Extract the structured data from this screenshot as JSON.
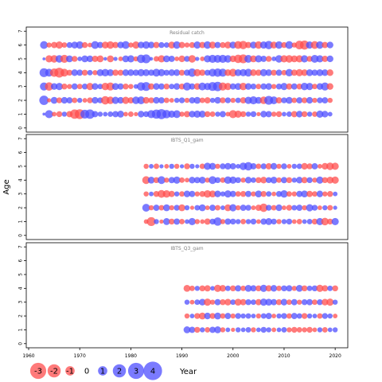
{
  "chart_data": {
    "type": "scatter",
    "subtype": "bubble-residual-plot",
    "xlabel": "Year",
    "ylabel": "Age",
    "xlim": [
      1960,
      2022
    ],
    "x_ticks": [
      1960,
      1970,
      1980,
      1990,
      2000,
      2010,
      2020
    ],
    "y_ticks": [
      0,
      1,
      2,
      3,
      4,
      5,
      6,
      7
    ],
    "colors": {
      "negative": "#ff4d4d",
      "positive": "#4d4dff",
      "frame": "#000000",
      "panel_title": "#7f7f7f"
    },
    "legend": {
      "position": "bottom-left",
      "entries": [
        {
          "label": "-3",
          "value": -3
        },
        {
          "label": "-2",
          "value": -2
        },
        {
          "label": "-1",
          "value": -1
        },
        {
          "label": "0",
          "value": 0
        },
        {
          "label": "1",
          "value": 1
        },
        {
          "label": "2",
          "value": 2
        },
        {
          "label": "3",
          "value": 3
        },
        {
          "label": "4",
          "value": 4
        }
      ]
    },
    "panels": [
      {
        "title": "Residual catch",
        "ylim": [
          -0.3,
          7.3
        ],
        "years": [
          1963,
          2019
        ],
        "ages": [
          1,
          2,
          3,
          4,
          5,
          6
        ],
        "residuals": {
          "1": [
            0.2,
            1.5,
            -0.5,
            -0.8,
            0.6,
            -0.9,
            -2.0,
            -2.2,
            1.8,
            2.0,
            0.9,
            0.6,
            0.5,
            0.7,
            0.9,
            1.1,
            -0.5,
            -0.7,
            -0.4,
            1.0,
            0.8,
            1.5,
            1.9,
            2.3,
            1.6,
            1.2,
            1.4,
            -0.6,
            -0.9,
            1.0,
            1.2,
            1.1,
            -0.8,
            -0.7,
            0.6,
            0.9,
            -0.5,
            -1.5,
            -1.2,
            -0.8,
            0.6,
            0.8,
            -0.4,
            1.0,
            0.9,
            -0.6,
            -0.8,
            0.5,
            0.7,
            -0.9,
            1.0,
            -0.8,
            0.6,
            -0.7,
            1.2,
            1.0,
            0.5
          ],
          "2": [
            2.0,
            -0.4,
            1.1,
            -0.8,
            1.0,
            0.9,
            -0.7,
            0.6,
            -0.5,
            -0.8,
            1.0,
            0.8,
            -1.6,
            -1.3,
            1.2,
            1.0,
            -1.2,
            -0.9,
            1.3,
            1.4,
            -1.0,
            -0.8,
            1.0,
            0.9,
            -0.7,
            -0.5,
            0.6,
            0.8,
            -0.6,
            0.9,
            1.1,
            -0.7,
            -0.9,
            0.6,
            1.0,
            -0.8,
            0.8,
            -0.6,
            0.7,
            -0.9,
            1.2,
            1.5,
            1.1,
            -1.3,
            1.8,
            1.4,
            -0.9,
            0.8,
            1.1,
            -0.7,
            0.9,
            -0.8,
            1.0,
            -0.6,
            0.8,
            0.9,
            -0.6
          ],
          "3": [
            1.5,
            -1.6,
            1.0,
            1.2,
            -0.8,
            -0.6,
            0.9,
            -0.7,
            0.8,
            -1.2,
            1.0,
            0.7,
            -1.3,
            -1.5,
            1.1,
            0.9,
            -0.8,
            -0.6,
            0.5,
            1.6,
            1.8,
            -0.9,
            1.0,
            0.9,
            -0.8,
            0.7,
            1.0,
            -0.8,
            1.5,
            0.9,
            -1.0,
            1.4,
            1.2,
            1.8,
            2.0,
            -1.5,
            -1.2,
            0.9,
            1.1,
            -1.3,
            1.0,
            0.8,
            -0.7,
            0.9,
            1.0,
            -0.6,
            0.8,
            1.2,
            -0.9,
            0.9,
            -0.8,
            1.3,
            1.2,
            -0.7,
            1.0,
            1.5,
            -1.0
          ],
          "4": [
            1.8,
            1.4,
            -1.6,
            -2.2,
            -1.4,
            -0.8,
            1.0,
            0.9,
            -0.8,
            0.7,
            -0.6,
            1.1,
            1.3,
            1.1,
            -0.9,
            -0.8,
            1.0,
            1.0,
            0.9,
            1.2,
            1.1,
            0.9,
            1.4,
            1.2,
            0.8,
            1.0,
            1.0,
            -0.8,
            0.9,
            1.6,
            -1.2,
            -0.9,
            0.8,
            1.4,
            1.6,
            1.5,
            -1.0,
            -1.4,
            1.1,
            1.2,
            1.4,
            -1.0,
            -0.9,
            1.2,
            1.0,
            -0.8,
            0.9,
            -0.7,
            1.3,
            -0.9,
            -1.2,
            -1.0,
            1.1,
            0.9,
            1.1,
            1.0,
            -1.0
          ],
          "5": [
            0.2,
            -1.2,
            -1.3,
            1.3,
            -1.5,
            1.1,
            -0.8,
            0.5,
            1.1,
            1.0,
            -0.9,
            -1.1,
            0.3,
            -1.1,
            0.4,
            -0.5,
            1.1,
            1.2,
            -0.6,
            1.6,
            1.8,
            0.3,
            -0.7,
            -1.2,
            1.1,
            0.9,
            -0.5,
            -1.0,
            0.8,
            -1.3,
            0.4,
            -0.5,
            1.2,
            1.5,
            1.4,
            1.5,
            1.3,
            -1.0,
            -1.6,
            -1.8,
            1.4,
            -1.1,
            1.2,
            0.9,
            -0.8,
            0.5,
            1.3,
            -1.2,
            -1.3,
            -1.1,
            -1.2,
            1.2,
            -0.8,
            1.4,
            1.2,
            -0.9,
            1.0
          ],
          "6": [
            1.4,
            -0.6,
            -0.9,
            -1.2,
            -0.7,
            0.8,
            1.1,
            1.3,
            -0.8,
            -0.5,
            1.4,
            0.9,
            -1.1,
            -1.3,
            -0.9,
            1.0,
            1.4,
            -0.6,
            -1.2,
            1.0,
            1.3,
            1.0,
            -0.9,
            0.8,
            0.7,
            -1.1,
            1.3,
            -0.9,
            -0.6,
            -0.8,
            1.2,
            -0.9,
            1.3,
            -1.1,
            0.9,
            -0.8,
            -1.1,
            1.1,
            -1.4,
            -1.6,
            -0.9,
            1.1,
            -1.3,
            1.2,
            1.6,
            -1.1,
            1.3,
            -0.8,
            1.4,
            -0.6,
            -1.7,
            -1.9,
            1.2,
            -1.4,
            1.3,
            -0.9,
            1.0
          ]
        }
      },
      {
        "title": "IBTS_Q1_gam",
        "ylim": [
          -0.3,
          7.3
        ],
        "years": [
          1983,
          2020
        ],
        "ages": [
          1,
          2,
          3,
          4,
          5
        ],
        "residuals": {
          "1": [
            -0.5,
            -1.8,
            0.6,
            -0.4,
            1.1,
            -0.8,
            0.9,
            -0.7,
            0.5,
            1.2,
            -0.6,
            -0.5,
            -0.9,
            0.8,
            1.6,
            -0.6,
            0.9,
            0.8,
            0.6,
            -0.7,
            0.6,
            0.8,
            -0.5,
            0.9,
            1.1,
            0.8,
            -0.6,
            0.6,
            0.8,
            -0.5,
            -0.7,
            0.5,
            0.7,
            -0.8,
            1.2,
            -1.3,
            -0.8,
            1.2
          ],
          "2": [
            1.4,
            -0.6,
            0.9,
            -0.7,
            1.1,
            -0.6,
            0.8,
            -1.1,
            0.6,
            -0.4,
            0.7,
            1.1,
            -0.5,
            0.9,
            -0.7,
            0.5,
            -1.1,
            1.2,
            -0.6,
            0.9,
            0.8,
            -0.5,
            -0.9,
            -1.6,
            0.8,
            -0.7,
            1.0,
            -0.5,
            -0.8,
            0.7,
            0.9,
            -0.6,
            1.2,
            0.8,
            -0.5,
            0.6,
            -0.7,
            0.4
          ],
          "3": [
            -0.6,
            0.5,
            -0.8,
            -1.4,
            -1.3,
            -0.9,
            0.6,
            -0.7,
            1.0,
            0.9,
            -0.6,
            -0.8,
            -1.3,
            -1.1,
            1.0,
            0.6,
            1.2,
            0.9,
            -0.7,
            -0.8,
            0.9,
            -0.6,
            1.1,
            -0.8,
            0.7,
            -0.5,
            0.8,
            1.3,
            -0.7,
            -0.6,
            0.9,
            1.1,
            -0.9,
            -0.7,
            1.0,
            -0.6,
            -0.8,
            0.5
          ],
          "4": [
            -1.4,
            1.1,
            -0.8,
            1.4,
            -0.6,
            0.9,
            1.2,
            -0.7,
            -0.5,
            1.0,
            0.9,
            1.1,
            -0.6,
            1.4,
            0.8,
            -0.7,
            1.3,
            1.2,
            0.8,
            -0.6,
            1.0,
            0.7,
            -0.8,
            -1.0,
            0.8,
            1.1,
            -0.7,
            0.9,
            -0.8,
            0.6,
            1.0,
            -0.9,
            0.8,
            -0.6,
            1.2,
            -0.8,
            -1.1,
            -1.2
          ],
          "5": [
            -0.6,
            0.5,
            -0.7,
            0.4,
            -0.5,
            0.6,
            -0.6,
            0.4,
            -0.8,
            0.6,
            0.4,
            -0.7,
            1.2,
            1.1,
            -0.6,
            0.8,
            1.0,
            0.9,
            0.5,
            1.3,
            1.6,
            0.9,
            -0.7,
            0.8,
            -0.9,
            1.0,
            -0.6,
            0.8,
            -0.5,
            0.6,
            0.7,
            -1.0,
            -0.8,
            0.9,
            -0.5,
            -1.0,
            -1.3,
            -1.2
          ]
        }
      },
      {
        "title": "IBTS_Q3_gam",
        "ylim": [
          -0.3,
          7.3
        ],
        "years": [
          1991,
          2020
        ],
        "ages": [
          1,
          2,
          3,
          4
        ],
        "residuals": {
          "1": [
            1.1,
            0.9,
            -0.8,
            0.6,
            -0.7,
            0.9,
            1.1,
            -0.6,
            0.5,
            -0.4,
            0.6,
            0.5,
            0.7,
            -0.6,
            0.5,
            0.8,
            0.6,
            -0.5,
            0.5,
            0.7,
            -0.6,
            -0.8,
            -0.7,
            -0.6,
            -0.8,
            -0.5,
            0.6,
            -0.7,
            0.5,
            0.6
          ],
          "2": [
            -0.6,
            0.5,
            -0.8,
            -1.1,
            1.0,
            -0.8,
            1.1,
            -0.7,
            0.9,
            -0.6,
            0.8,
            0.6,
            0.7,
            0.5,
            -0.6,
            0.7,
            0.9,
            -0.5,
            0.6,
            0.8,
            -0.7,
            0.9,
            0.7,
            -0.8,
            0.6,
            0.5,
            -0.7,
            0.8,
            0.6,
            -0.5
          ],
          "3": [
            0.6,
            -0.5,
            0.7,
            1.0,
            -1.2,
            -0.6,
            0.9,
            -0.8,
            -1.0,
            0.7,
            -1.1,
            -0.9,
            0.8,
            0.7,
            -0.9,
            1.2,
            1.1,
            0.9,
            -0.8,
            1.0,
            -0.7,
            0.9,
            -0.6,
            0.8,
            0.9,
            -0.7,
            0.8,
            -1.0,
            -1.2,
            0.6
          ],
          "4": [
            -1.1,
            -0.7,
            0.6,
            -0.8,
            -0.9,
            0.5,
            -1.2,
            -1.0,
            0.7,
            -0.8,
            0.9,
            -0.7,
            1.1,
            0.9,
            -0.8,
            1.2,
            -0.9,
            1.0,
            -0.7,
            0.8,
            0.9,
            -0.6,
            1.1,
            -0.8,
            0.7,
            0.8,
            -1.2,
            -0.9,
            0.7,
            -0.8
          ]
        }
      }
    ]
  }
}
